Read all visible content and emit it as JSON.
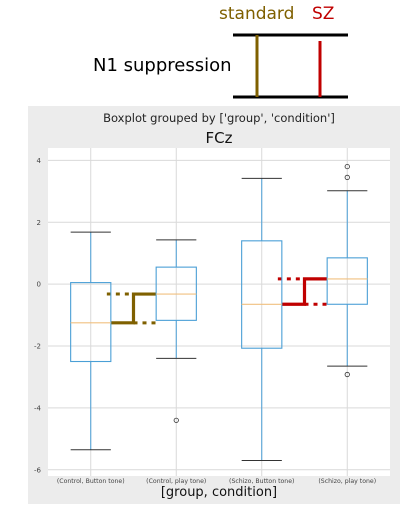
{
  "annotation": {
    "legend_standard": "standard",
    "legend_sz": "SZ",
    "title": "N1 suppression",
    "colors": {
      "standard": "#7f6000",
      "sz": "#c00000"
    }
  },
  "chart_data": {
    "type": "box",
    "suptitle": "Boxplot grouped by ['group', 'condition']",
    "title": "FCz",
    "xlabel": "[group, condition]",
    "ylabel": "",
    "ylim": [
      -6.2,
      4.4
    ],
    "yticks": [
      -6,
      -4,
      -2,
      0,
      2,
      4
    ],
    "grid": true,
    "box_color": "#4a9fd6",
    "median_color": "#f0c080",
    "categories": [
      "(Control, Button tone)",
      "(Control, play tone)",
      "(Schizo, Button tone)",
      "(Schizo, play tone)"
    ],
    "boxes": [
      {
        "whislo": -5.35,
        "q1": -2.5,
        "med": -1.25,
        "q3": 0.05,
        "whishi": 1.68,
        "fliers": []
      },
      {
        "whislo": -2.4,
        "q1": -1.17,
        "med": -0.32,
        "q3": 0.55,
        "whishi": 1.43,
        "fliers": [
          -4.4
        ]
      },
      {
        "whislo": -5.7,
        "q1": -2.07,
        "med": -0.65,
        "q3": 1.4,
        "whishi": 3.42,
        "fliers": []
      },
      {
        "whislo": -2.65,
        "q1": -0.65,
        "med": 0.17,
        "q3": 0.85,
        "whishi": 3.02,
        "fliers": [
          3.45,
          3.8,
          -2.92
        ]
      }
    ],
    "annotations": [
      {
        "label": "standard",
        "color": "#7f6000",
        "from_category": 0,
        "to_category": 1,
        "from_value": -1.25,
        "to_value": -0.32
      },
      {
        "label": "SZ",
        "color": "#c00000",
        "from_category": 2,
        "to_category": 3,
        "from_value": -0.65,
        "to_value": 0.17
      }
    ]
  }
}
